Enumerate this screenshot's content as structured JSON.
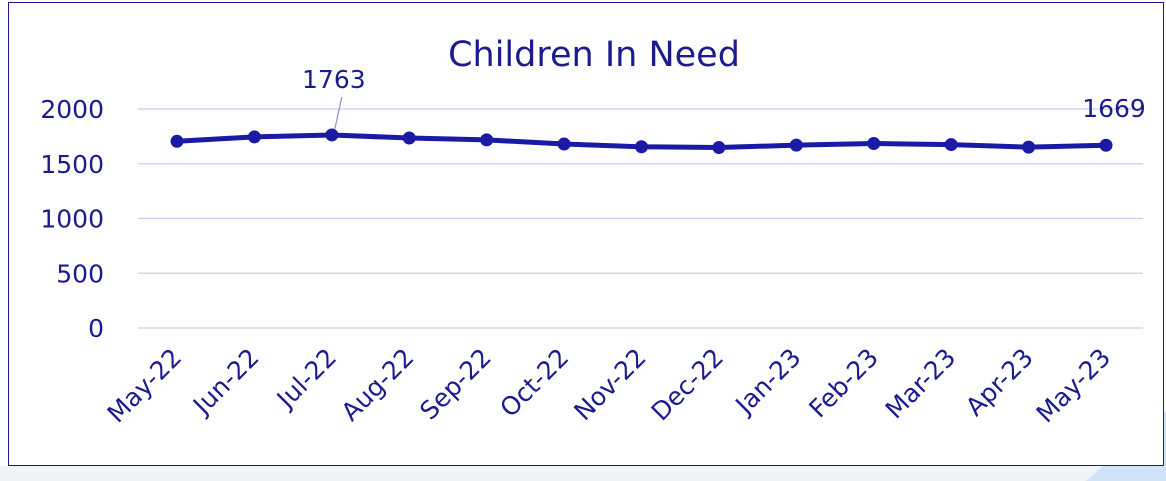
{
  "chart_data": {
    "type": "line",
    "title": "Children In Need",
    "xlabel": "",
    "ylabel": "",
    "categories": [
      "May-22",
      "Jun-22",
      "Jul-22",
      "Aug-22",
      "Sep-22",
      "Oct-22",
      "Nov-22",
      "Dec-22",
      "Jan-23",
      "Feb-23",
      "Mar-23",
      "Apr-23",
      "May-23"
    ],
    "series": [
      {
        "values": [
          1705,
          1745,
          1763,
          1735,
          1718,
          1680,
          1655,
          1648,
          1670,
          1685,
          1675,
          1652,
          1669
        ]
      }
    ],
    "ylim": [
      0,
      2000
    ],
    "yticks": [
      "0",
      "500",
      "1000",
      "1500",
      "2000"
    ],
    "data_labels": [
      {
        "index": 2,
        "text": "1763"
      },
      {
        "index": 12,
        "text": "1669"
      }
    ],
    "grid": true,
    "legend": "none",
    "colors": {
      "line": "#1a1aa6",
      "text": "#1b1b8f",
      "grid": "#c9cdf0"
    }
  }
}
